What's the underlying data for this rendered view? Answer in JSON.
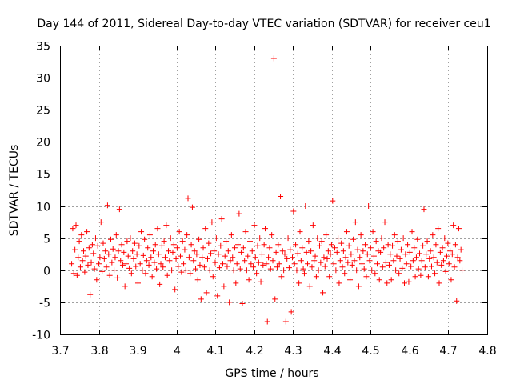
{
  "chart_data": {
    "type": "scatter",
    "title": "Day 144 of 2011, Sidereal Day-to-day VTEC variation (SDTVAR) for receiver ceu1",
    "xlabel": "GPS time / hours",
    "ylabel": "SDTVAR / TECUs",
    "xlim": [
      3.7,
      4.8
    ],
    "ylim": [
      -10,
      35
    ],
    "xticks": [
      3.7,
      3.8,
      3.9,
      4.0,
      4.1,
      4.2,
      4.3,
      4.4,
      4.5,
      4.6,
      4.7,
      4.8
    ],
    "xtick_labels": [
      "3.7",
      "3.8",
      "3.9",
      "4",
      "4.1",
      "4.2",
      "4.3",
      "4.4",
      "4.5",
      "4.6",
      "4.7",
      "4.8"
    ],
    "yticks": [
      -10,
      -5,
      0,
      5,
      10,
      15,
      20,
      25,
      30,
      35
    ],
    "ytick_labels": [
      "-10",
      "-5",
      "0",
      "5",
      "10",
      "15",
      "20",
      "25",
      "30",
      "35"
    ],
    "grid": true,
    "marker": "plus",
    "color": "#ff0000",
    "series": [
      {
        "name": "SDTVAR",
        "x_start": 3.73,
        "x_step": 0.0028,
        "y": [
          1.0,
          6.5,
          -0.5,
          3.2,
          7.0,
          -0.8,
          2.0,
          4.5,
          0.5,
          5.5,
          1.5,
          3.0,
          -0.3,
          2.2,
          6.0,
          0.8,
          3.5,
          -3.8,
          1.2,
          4.0,
          2.6,
          0.2,
          5.0,
          -1.5,
          3.8,
          1.0,
          2.0,
          7.5,
          -0.2,
          4.2,
          1.8,
          3.0,
          0.5,
          10.1,
          2.5,
          -0.8,
          4.8,
          1.2,
          3.3,
          0.0,
          2.0,
          5.5,
          -1.2,
          3.0,
          9.5,
          1.5,
          4.0,
          0.8,
          2.8,
          -2.5,
          1.0,
          4.5,
          2.2,
          0.3,
          5.0,
          -0.5,
          3.0,
          1.8,
          4.2,
          0.6,
          2.5,
          -2.0,
          3.8,
          1.0,
          6.0,
          0.0,
          2.3,
          4.8,
          -0.5,
          1.5,
          3.5,
          0.8,
          5.5,
          2.0,
          -1.0,
          3.0,
          1.2,
          4.0,
          0.2,
          6.5,
          2.5,
          -2.2,
          1.0,
          3.8,
          0.5,
          4.5,
          2.0,
          7.0,
          -0.8,
          3.0,
          1.5,
          5.0,
          0.0,
          2.8,
          4.0,
          -3.0,
          1.8,
          3.5,
          0.6,
          6.0,
          2.2,
          -0.3,
          4.5,
          1.0,
          3.2,
          0.0,
          5.5,
          11.2,
          2.0,
          -0.5,
          4.0,
          9.8,
          1.5,
          3.0,
          0.2,
          2.5,
          -1.5,
          4.8,
          0.8,
          -4.5,
          2.0,
          3.5,
          0.5,
          6.5,
          -3.5,
          1.8,
          4.2,
          0.0,
          2.6,
          7.5,
          -1.0,
          3.0,
          1.2,
          5.0,
          -4.0,
          2.5,
          0.4,
          3.8,
          8.0,
          1.0,
          -2.5,
          2.2,
          4.5,
          0.6,
          3.0,
          -5.0,
          1.5,
          5.5,
          2.0,
          0.0,
          3.5,
          -2.0,
          1.0,
          4.0,
          8.8,
          0.2,
          2.8,
          -5.2,
          3.5,
          1.5,
          6.0,
          0.0,
          2.2,
          -1.5,
          4.5,
          1.0,
          3.0,
          0.5,
          7.0,
          2.0,
          -0.5,
          3.8,
          1.2,
          5.0,
          -1.8,
          2.5,
          0.8,
          4.0,
          6.5,
          1.0,
          -8.0,
          2.0,
          3.5,
          0.2,
          5.5,
          1.5,
          33.0,
          -4.5,
          2.8,
          0.5,
          4.0,
          1.0,
          11.5,
          -1.0,
          3.0,
          0.0,
          2.5,
          -8.0,
          1.8,
          5.0,
          0.4,
          3.2,
          -6.5,
          2.0,
          9.2,
          1.0,
          4.0,
          0.0,
          2.6,
          -2.0,
          6.0,
          1.5,
          3.5,
          0.2,
          -0.5,
          10.0,
          2.8,
          1.0,
          4.5,
          -2.5,
          3.0,
          0.5,
          7.0,
          1.5,
          2.2,
          -1.0,
          5.0,
          0.0,
          3.8,
          1.2,
          4.5,
          -3.5,
          2.0,
          0.6,
          5.5,
          1.8,
          3.0,
          -1.0,
          2.5,
          4.0,
          10.8,
          1.0,
          3.5,
          0.0,
          2.8,
          5.0,
          -2.0,
          1.5,
          4.2,
          0.5,
          3.0,
          -0.5,
          2.0,
          6.0,
          1.2,
          3.8,
          -1.5,
          2.5,
          0.8,
          4.8,
          1.5,
          7.5,
          0.0,
          3.2,
          -2.5,
          2.0,
          5.5,
          1.0,
          3.0,
          0.2,
          4.0,
          -1.0,
          2.5,
          10.0,
          1.5,
          3.5,
          0.0,
          6.0,
          2.2,
          -0.5,
          4.5,
          1.0,
          3.0,
          -1.5,
          2.8,
          5.0,
          0.5,
          3.5,
          7.5,
          1.2,
          -2.0,
          4.0,
          0.8,
          2.5,
          -1.5,
          3.8,
          1.5,
          5.5,
          0.0,
          2.2,
          4.5,
          -0.5,
          1.8,
          3.2,
          0.3,
          5.0,
          -2.0,
          2.5,
          1.0,
          4.0,
          -1.8,
          2.8,
          0.6,
          6.0,
          1.5,
          3.5,
          -1.0,
          2.0,
          4.8,
          0.2,
          2.6,
          -0.8,
          1.5,
          3.8,
          9.5,
          0.5,
          2.5,
          4.5,
          -1.0,
          1.8,
          3.0,
          0.6,
          5.5,
          2.0,
          -0.5,
          4.0,
          1.2,
          6.5,
          -2.0,
          2.8,
          0.8,
          3.5,
          1.5,
          5.0,
          -0.2,
          2.2,
          4.2,
          1.0,
          3.0,
          -1.5,
          2.5,
          7.0,
          0.5,
          4.0,
          -4.8,
          2.0,
          6.5,
          1.5,
          3.2,
          0.0
        ]
      }
    ]
  }
}
